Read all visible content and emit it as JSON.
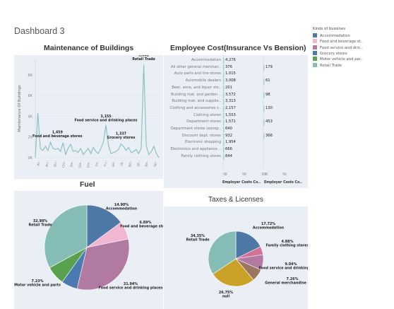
{
  "dashboard_title": "Dashboard 3",
  "legend": {
    "title": "Kinds of bussines",
    "items": [
      {
        "label": "Accommodation",
        "color": "#4e79a7"
      },
      {
        "label": "Food and beverage st..",
        "color": "#f1b6d0"
      },
      {
        "label": "Food service and drin..",
        "color": "#b07aa1"
      },
      {
        "label": "Grocery stores",
        "color": "#4a7ab0"
      },
      {
        "label": "Motor vehicle and par..",
        "color": "#59a14f"
      },
      {
        "label": "Retail Trade",
        "color": "#86bcb6"
      }
    ]
  },
  "maintenance": {
    "title": "Maintenance of Buildings",
    "ylabel": "Maintenance Of Buildings",
    "yticks": [
      "0K",
      "2K",
      "4K",
      "6K",
      "8K"
    ],
    "xticks": [
      "Al..",
      "Au..",
      "Bu..",
      "Clo..",
      "De..",
      "Dis..",
      "Ele..",
      "Fo..",
      "Fu..",
      "He..",
      "Hi..",
      "No..",
      "Ot..",
      "Re..",
      "Sp.."
    ],
    "annotations": [
      {
        "value": "9,002",
        "name": "Retail Trade"
      },
      {
        "value": "3,155",
        "name": "Food service and drinking places"
      },
      {
        "value": "1,459",
        "name": "Food and beverage stores"
      },
      {
        "value": "1,337",
        "name": "Grocery stores"
      }
    ]
  },
  "employee": {
    "title": "Employee Cost(Insurance Vs Bension)",
    "rows": [
      {
        "category": "Accommodation",
        "insurance": "4,276",
        "pension": ""
      },
      {
        "category": "All other general merchan..",
        "insurance": "376",
        "pension": "179"
      },
      {
        "category": "Auto parts and tire stores",
        "insurance": "1,015",
        "pension": ""
      },
      {
        "category": "Automobile dealers",
        "insurance": "3,008",
        "pension": "61"
      },
      {
        "category": "Beer, wine, and liquor sto..",
        "insurance": "201",
        "pension": ""
      },
      {
        "category": "Building mat. and garden ..",
        "insurance": "3,572",
        "pension": "98"
      },
      {
        "category": "Building mat. and supplie..",
        "insurance": "3,313",
        "pension": ""
      },
      {
        "category": "Clothing and accessories s..",
        "insurance": "2,157",
        "pension": "130"
      },
      {
        "category": "Clothing stores",
        "insurance": "1,553",
        "pension": ""
      },
      {
        "category": "Department stores",
        "insurance": "1,571",
        "pension": "453"
      },
      {
        "category": "Department stores (excep..",
        "insurance": "640",
        "pension": ""
      },
      {
        "category": "Discount dept. stores",
        "insurance": "932",
        "pension": "366"
      },
      {
        "category": "Electronic shopping",
        "insurance": "1,954",
        "pension": ""
      },
      {
        "category": "Electronics and appliance ..",
        "insurance": "666",
        "pension": ""
      },
      {
        "category": "Family clothing stores",
        "insurance": "844",
        "pension": ""
      }
    ],
    "axis_ticks_1": [
      "0K",
      "5K",
      "10K"
    ],
    "axis_ticks_2": [
      "0K",
      "5K"
    ],
    "col1": "Employer Costs Co..",
    "col2": "Employer Costs Co.."
  },
  "fuel": {
    "title": "Fuel",
    "labels": [
      {
        "pct": "14.90%",
        "name": "Accommodation"
      },
      {
        "pct": "6.89%",
        "name": "Food and beverage stores"
      },
      {
        "pct": "31.94%",
        "name": "Food service and drinking places"
      },
      {
        "pct": "7.23%",
        "name": "Motor vehicle and parts"
      },
      {
        "pct": "32.90%",
        "name": "Retail Trade"
      }
    ]
  },
  "taxes": {
    "title": "Taxes & Licenses",
    "labels": [
      {
        "pct": "17.72%",
        "name": "Accommodation"
      },
      {
        "pct": "4.88%",
        "name": "Family clothing stores"
      },
      {
        "pct": "9.04%",
        "name": "Food service and drinking places"
      },
      {
        "pct": "7.26%",
        "name": "General merchandise stores"
      },
      {
        "pct": "26.75%",
        "name": "null"
      },
      {
        "pct": "34.35%",
        "name": "Retail Trade"
      }
    ]
  },
  "chart_data": [
    {
      "type": "line",
      "title": "Maintenance of Buildings",
      "ylabel": "Maintenance Of Buildings",
      "ylim": [
        0,
        9500
      ],
      "x": [
        1,
        2,
        3,
        4,
        5,
        6,
        7,
        8,
        9,
        10,
        11,
        12,
        13,
        14,
        15,
        16,
        17,
        18,
        19,
        20,
        21,
        22,
        23,
        24,
        25,
        26,
        27,
        28,
        29,
        30,
        31,
        32,
        33,
        34,
        35,
        36,
        37,
        38,
        39,
        40,
        41,
        42,
        43,
        44,
        45,
        46,
        47,
        48,
        49,
        50
      ],
      "values": [
        0,
        4300,
        900,
        700,
        1100,
        700,
        1500,
        900,
        800,
        900,
        600,
        1459,
        300,
        900,
        1300,
        600,
        700,
        500,
        900,
        300,
        600,
        900,
        400,
        1000,
        600,
        400,
        900,
        1500,
        3155,
        1200,
        400,
        500,
        600,
        800,
        1337,
        1100,
        700,
        1000,
        500,
        600,
        800,
        400,
        900,
        9002,
        1200,
        300,
        600,
        1100,
        400,
        0
      ],
      "annotations": [
        {
          "x": 44,
          "y": 9002,
          "label": "Retail Trade"
        },
        {
          "x": 29,
          "y": 3155,
          "label": "Food service and drinking places"
        },
        {
          "x": 12,
          "y": 1459,
          "label": "Food and beverage stores"
        },
        {
          "x": 35,
          "y": 1337,
          "label": "Grocery stores"
        }
      ]
    },
    {
      "type": "bar",
      "title": "Employee Cost(Insurance Vs Bension)",
      "categories": [
        "Accommodation",
        "All other general merchan..",
        "Auto parts and tire stores",
        "Automobile dealers",
        "Beer, wine, and liquor sto..",
        "Building mat. and garden ..",
        "Building mat. and supplie..",
        "Clothing and accessories s..",
        "Clothing stores",
        "Department stores",
        "Department stores (excep..",
        "Discount dept. stores",
        "Electronic shopping",
        "Electronics and appliance ..",
        "Family clothing stores"
      ],
      "series": [
        {
          "name": "Employer Costs Co..",
          "values": [
            4276,
            376,
            1015,
            3008,
            201,
            3572,
            3313,
            2157,
            1553,
            1571,
            640,
            932,
            1954,
            666,
            844
          ]
        },
        {
          "name": "Employer Costs Co..",
          "values": [
            null,
            179,
            null,
            61,
            null,
            98,
            null,
            130,
            null,
            453,
            null,
            366,
            null,
            null,
            null
          ]
        }
      ]
    },
    {
      "type": "pie",
      "title": "Fuel",
      "categories": [
        "Accommodation",
        "Food and beverage stores",
        "Food service and drinking places",
        "Grocery stores",
        "Motor vehicle and parts",
        "Retail Trade"
      ],
      "values": [
        14.9,
        6.89,
        31.94,
        6.14,
        7.23,
        32.9
      ],
      "colors": [
        "#4e79a7",
        "#f1b6d0",
        "#b07aa1",
        "#4a7ab0",
        "#59a14f",
        "#86bcb6"
      ]
    },
    {
      "type": "pie",
      "title": "Taxes & Licenses",
      "categories": [
        "Accommodation",
        "Family clothing stores",
        "Food service and drinking places",
        "General merchandise stores",
        "null",
        "Retail Trade"
      ],
      "values": [
        17.72,
        4.88,
        9.04,
        7.26,
        26.75,
        34.35
      ],
      "colors": [
        "#4e79a7",
        "#d37295",
        "#b07aa1",
        "#9d7660",
        "#c9a227",
        "#86bcb6"
      ]
    }
  ]
}
